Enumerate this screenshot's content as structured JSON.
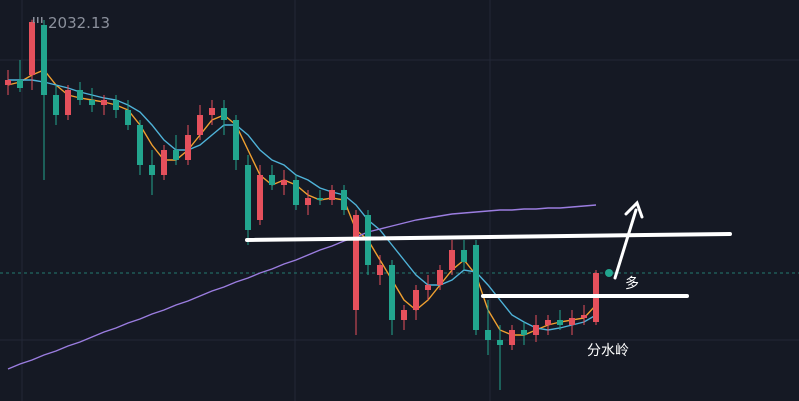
{
  "chart_data": {
    "type": "candlestick",
    "price_label": 2032.13,
    "annotations": [
      "多",
      "分水岭"
    ],
    "ylim": [
      1994,
      2034.1
    ],
    "up_color": "#e5505c",
    "down_color": "#22a58e",
    "open": [
      2025.6,
      2026.1,
      2026.6,
      2031.6,
      2024.6,
      2022.6,
      2025.1,
      2024.1,
      2023.6,
      2024.1,
      2023.1,
      2021.6,
      2017.6,
      2016.6,
      2019.1,
      2018.1,
      2020.6,
      2022.6,
      2023.3,
      2022.1,
      2017.6,
      2012.1,
      2016.6,
      2015.6,
      2016.1,
      2013.6,
      2014.3,
      2014.1,
      2015.1,
      2003.1,
      2012.6,
      2006.6,
      2007.6,
      2002.1,
      2003.1,
      2005.1,
      2005.6,
      2007.1,
      2009.1,
      2009.6,
      2001.1,
      2000.1,
      1999.6,
      2001.1,
      2000.6,
      2001.6,
      2002.1,
      2001.6,
      2002.3,
      2001.9
    ],
    "high": [
      2027.1,
      2028.1,
      2032.13,
      2032.1,
      2025.6,
      2025.6,
      2025.9,
      2025.3,
      2024.6,
      2024.6,
      2024.1,
      2022.1,
      2019.1,
      2019.6,
      2020.6,
      2021.6,
      2023.6,
      2024.1,
      2024.1,
      2022.6,
      2018.6,
      2017.6,
      2017.6,
      2017.1,
      2016.6,
      2015.1,
      2015.1,
      2015.6,
      2015.6,
      2013.1,
      2013.1,
      2008.6,
      2008.1,
      2003.6,
      2005.6,
      2006.6,
      2007.6,
      2010.1,
      2010.1,
      2010.1,
      2004.1,
      2001.6,
      2001.6,
      2001.9,
      2002.6,
      2002.6,
      2003.1,
      2003.1,
      2003.6,
      2007.1
    ],
    "low": [
      2024.6,
      2024.9,
      2025.1,
      2016.1,
      2021.6,
      2022.1,
      2023.6,
      2022.9,
      2022.6,
      2022.3,
      2021.1,
      2016.6,
      2014.6,
      2016.1,
      2017.6,
      2017.6,
      2020.1,
      2021.6,
      2020.6,
      2017.1,
      2009.6,
      2011.6,
      2015.1,
      2014.6,
      2013.1,
      2012.6,
      2013.6,
      2013.6,
      2012.6,
      2000.6,
      2006.6,
      2005.6,
      2000.6,
      2001.1,
      2002.1,
      2004.1,
      2005.1,
      2006.6,
      2007.1,
      2000.6,
      1998.6,
      1995.1,
      1999.1,
      1999.6,
      1999.9,
      2000.6,
      2001.1,
      2000.6,
      2001.6,
      2001.6
    ],
    "close": [
      2026.1,
      2025.3,
      2031.9,
      2024.6,
      2022.6,
      2025.1,
      2024.1,
      2023.6,
      2024.1,
      2023.1,
      2021.6,
      2017.6,
      2016.6,
      2019.1,
      2018.1,
      2020.6,
      2022.6,
      2023.3,
      2022.1,
      2018.1,
      2011.1,
      2016.6,
      2015.6,
      2016.1,
      2013.6,
      2014.3,
      2014.1,
      2015.1,
      2013.1,
      2012.6,
      2007.6,
      2007.6,
      2002.1,
      2003.1,
      2005.1,
      2005.6,
      2007.1,
      2009.1,
      2007.9,
      2001.1,
      2000.1,
      1999.6,
      2001.1,
      2000.6,
      2001.6,
      2002.1,
      2001.6,
      2002.3,
      2002.6,
      2006.8
    ],
    "lines": [
      {
        "color": "#f0a030",
        "values": [
          2025.6,
          2025.9,
          2026.6,
          2027.1,
          2025.6,
          2024.6,
          2024.3,
          2024.1,
          2023.9,
          2023.6,
          2023.1,
          2021.6,
          2019.6,
          2018.1,
          2018.1,
          2019.1,
          2020.6,
          2022.1,
          2022.6,
          2021.6,
          2019.1,
          2016.6,
          2015.6,
          2016.1,
          2015.6,
          2014.6,
          2014.1,
          2014.3,
          2014.1,
          2011.1,
          2010.1,
          2008.1,
          2006.1,
          2004.1,
          2003.1,
          2004.1,
          2005.6,
          2007.1,
          2008.1,
          2006.6,
          2003.1,
          2001.1,
          2000.6,
          2000.6,
          2001.1,
          2001.6,
          2001.9,
          2002.1,
          2002.3,
          2003.6
        ]
      },
      {
        "color": "#4fb3d9",
        "values": [
          2026.1,
          2026.1,
          2026.1,
          2025.9,
          2025.6,
          2025.3,
          2024.9,
          2024.6,
          2024.3,
          2024.1,
          2023.6,
          2022.9,
          2021.6,
          2020.1,
          2019.1,
          2019.1,
          2019.6,
          2020.6,
          2021.6,
          2021.6,
          2020.6,
          2019.1,
          2018.1,
          2017.6,
          2016.6,
          2016.1,
          2015.3,
          2014.9,
          2014.6,
          2013.6,
          2012.1,
          2011.1,
          2009.6,
          2008.1,
          2006.6,
          2005.6,
          2005.6,
          2006.1,
          2007.1,
          2006.9,
          2005.6,
          2004.1,
          2002.6,
          2001.9,
          2001.3,
          2001.1,
          2001.3,
          2001.6,
          2001.9,
          2002.6
        ]
      },
      {
        "color": "#9b7de0",
        "values": [
          1997.2,
          1997.7,
          1998.1,
          1998.6,
          1999.0,
          1999.5,
          1999.9,
          2000.4,
          2000.9,
          2001.3,
          2001.8,
          2002.2,
          2002.7,
          2003.1,
          2003.6,
          2004.0,
          2004.5,
          2005.0,
          2005.4,
          2005.9,
          2006.3,
          2006.8,
          2007.2,
          2007.7,
          2008.1,
          2008.6,
          2009.1,
          2009.5,
          2010.0,
          2010.4,
          2010.9,
          2011.2,
          2011.5,
          2011.8,
          2012.1,
          2012.3,
          2012.5,
          2012.7,
          2012.8,
          2012.9,
          2013.0,
          2013.1,
          2013.1,
          2013.2,
          2013.2,
          2013.3,
          2013.3,
          2013.4,
          2013.5,
          2013.6
        ]
      }
    ]
  }
}
